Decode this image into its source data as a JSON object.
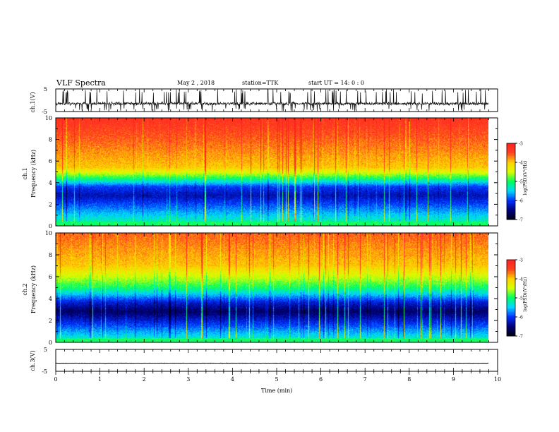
{
  "header": {
    "title": "VLF Spectra",
    "date": "May 2 , 2018",
    "station": "station=TTK",
    "start_ut": "start UT = 14: 0 : 0"
  },
  "colors": {
    "black": "#000000",
    "trace": "#111111",
    "colormap": [
      "#000010",
      "#00007a",
      "#0030ff",
      "#00d8ff",
      "#00ff60",
      "#d8ff00",
      "#ffd000",
      "#ff4020",
      "#ff2020"
    ]
  },
  "chart_data": [
    {
      "type": "line",
      "name": "ch1-waveform",
      "ylabel": "ch.1(V)",
      "ylim": [
        -5,
        5
      ],
      "yticks": [
        "5",
        "-5"
      ],
      "xlim": [
        0,
        10
      ],
      "baseline_v": -1.5,
      "spike_min_v": -5,
      "spike_max_v": 5
    },
    {
      "type": "heatmap",
      "name": "ch1-spectrogram",
      "ylabel_line1": "ch.1",
      "ylabel_line2": "Frequency (kHz)",
      "ylim": [
        0,
        10
      ],
      "yticks": [
        "0",
        "2",
        "4",
        "6",
        "8",
        "10"
      ],
      "xlim": [
        0,
        9.8
      ],
      "colorbar": {
        "label": "log(PSD)(V²/Hz)",
        "ticks": [
          "-3",
          "-4",
          "-5",
          "-6",
          "-7"
        ],
        "range": [
          -7,
          -3
        ]
      },
      "profile_khz": [
        0.3,
        2.8,
        3.6,
        4.4,
        5.4,
        10
      ],
      "profile_logpsd": [
        -5.2,
        -6.3,
        -6.0,
        -5.0,
        -4.0,
        -3.3
      ]
    },
    {
      "type": "heatmap",
      "name": "ch2-spectrogram",
      "ylabel_line1": "ch.2",
      "ylabel_line2": "Frequency (kHz)",
      "ylim": [
        0,
        10
      ],
      "yticks": [
        "0",
        "2",
        "4",
        "6",
        "8",
        "10"
      ],
      "xlim": [
        0,
        9.8
      ],
      "colorbar": {
        "label": "log(PSD)(V²/Hz)",
        "ticks": [
          "-3",
          "-4",
          "-5",
          "-6",
          "-7"
        ],
        "range": [
          -7,
          -3
        ]
      },
      "profile_khz": [
        0.3,
        2.8,
        3.6,
        5.0,
        7.0,
        10
      ],
      "profile_logpsd": [
        -5.3,
        -6.6,
        -6.2,
        -5.0,
        -4.0,
        -3.6
      ]
    },
    {
      "type": "line",
      "name": "ch3-waveform",
      "ylabel": "ch.3(V)",
      "ylim": [
        -5,
        5
      ],
      "yticks": [
        "5",
        "-5"
      ],
      "xlim": [
        0,
        10
      ],
      "baseline_v": -1.3
    }
  ],
  "xaxis": {
    "label": "Time (min)",
    "ticks": [
      "0",
      "1",
      "2",
      "3",
      "4",
      "5",
      "6",
      "7",
      "8",
      "9",
      "10"
    ],
    "range": [
      0,
      10
    ]
  }
}
